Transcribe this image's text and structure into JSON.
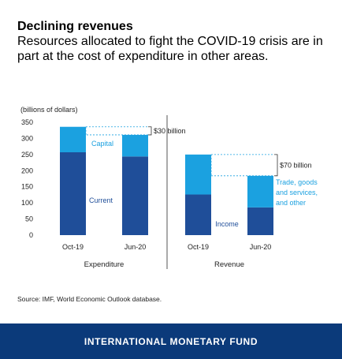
{
  "header": {
    "title": "Declining revenues",
    "subtitle": "Resources allocated to fight the COVID-19 crisis are in part at the cost of expenditure in other areas."
  },
  "chart_data": {
    "type": "bar",
    "stacked": true,
    "ylabel": "(billions of dollars)",
    "ylim": [
      0,
      350
    ],
    "yticks": [
      0,
      50,
      100,
      150,
      200,
      250,
      300,
      350
    ],
    "groups": [
      {
        "name": "Expenditure",
        "categories": [
          "Oct-19",
          "Jun-20"
        ],
        "series": [
          {
            "name": "Current",
            "values": [
              257,
              244
            ],
            "color": "#1f4e99"
          },
          {
            "name": "Capital",
            "values": [
              79,
              67
            ],
            "color": "#1ba1e0"
          }
        ],
        "annotation": "$30 billion"
      },
      {
        "name": "Revenue",
        "categories": [
          "Oct-19",
          "Jun-20"
        ],
        "series": [
          {
            "name": "Income",
            "values": [
              126,
              86
            ],
            "color": "#1f4e99"
          },
          {
            "name": "Trade, goods and services, and other",
            "values": [
              124,
              98
            ],
            "color": "#1ba1e0"
          }
        ],
        "annotation": "$70 billion"
      }
    ],
    "series_labels": {
      "capital": "Capital",
      "current": "Current",
      "income": "Income",
      "trade_lines": [
        "Trade, goods",
        "and services,",
        "and other"
      ]
    }
  },
  "source": "Source: IMF, World Economic Outlook database.",
  "footer": {
    "label": "INTERNATIONAL MONETARY FUND"
  }
}
